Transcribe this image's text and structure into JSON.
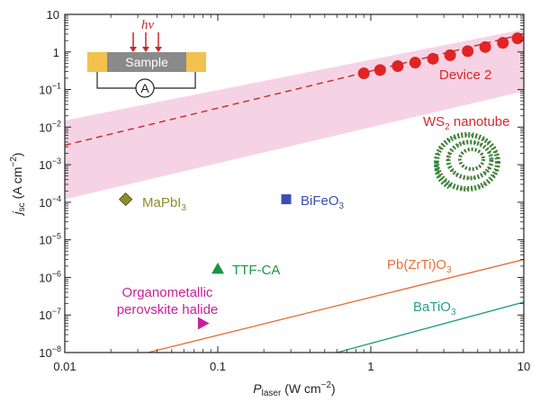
{
  "chart_data": {
    "type": "scatter",
    "x_scale": "log",
    "y_scale": "log",
    "xlim": [
      0.01,
      10
    ],
    "ylim": [
      1e-08,
      10
    ],
    "xlabel": "P_laser (W cm^-2)",
    "xlabel_parts": {
      "main": "P",
      "sub": "laser",
      "units": "(W cm",
      "sup": "−2",
      "close": ")"
    },
    "ylabel_parts": {
      "main": "j",
      "sub": "sc",
      "units": "(A cm",
      "sup": "−2",
      "close": ")"
    },
    "x_ticks": [
      {
        "value": 0.01,
        "label": "0.01"
      },
      {
        "value": 0.1,
        "label": "0.1"
      },
      {
        "value": 1,
        "label": "1"
      },
      {
        "value": 10,
        "label": "10"
      }
    ],
    "y_ticks": [
      {
        "value": 10,
        "label": "10",
        "exp": ""
      },
      {
        "value": 1,
        "label": "1",
        "exp": ""
      },
      {
        "value": 0.1,
        "label": "10",
        "exp": "−1"
      },
      {
        "value": 0.01,
        "label": "10",
        "exp": "−2"
      },
      {
        "value": 0.001,
        "label": "10",
        "exp": "−3"
      },
      {
        "value": 0.0001,
        "label": "10",
        "exp": "−4"
      },
      {
        "value": 1e-05,
        "label": "10",
        "exp": "−5"
      },
      {
        "value": 1e-06,
        "label": "10",
        "exp": "−6"
      },
      {
        "value": 1e-07,
        "label": "10",
        "exp": "−7"
      },
      {
        "value": 1e-08,
        "label": "10",
        "exp": "−8"
      }
    ],
    "series": [
      {
        "name": "Device 2",
        "color": "#e02424",
        "marker": "circle",
        "x": [
          0.9,
          1.15,
          1.5,
          1.95,
          2.55,
          3.3,
          4.3,
          5.6,
          7.3,
          9.1
        ],
        "y": [
          0.27,
          0.33,
          0.42,
          0.52,
          0.66,
          0.82,
          1.05,
          1.35,
          1.75,
          2.3
        ]
      },
      {
        "name": "MaPbI3",
        "label_main": "MaPbI",
        "label_sub": "3",
        "color": "#8c8c2e",
        "marker": "diamond",
        "x": [
          0.025
        ],
        "y": [
          0.00012
        ]
      },
      {
        "name": "BiFeO3",
        "label_main": "BiFeO",
        "label_sub": "3",
        "color": "#3b4fb0",
        "marker": "square",
        "x": [
          0.28
        ],
        "y": [
          0.00012
        ]
      },
      {
        "name": "TTF-CA",
        "label_main": "TTF-CA",
        "label_sub": "",
        "color": "#1a9641",
        "marker": "triangle-up",
        "x": [
          0.1
        ],
        "y": [
          1.7e-06
        ]
      },
      {
        "name": "Organometallic perovskite halide",
        "label_lines": [
          "Organometallic",
          "perovskite halide"
        ],
        "color": "#c7219a",
        "marker": "triangle-right",
        "x": [
          0.08
        ],
        "y": [
          6e-08
        ]
      }
    ],
    "fit_line": {
      "name": "Device 2 fit",
      "style": "dashed",
      "color": "#c62828",
      "x": [
        0.01,
        10
      ],
      "y": [
        0.0033,
        3.0
      ]
    },
    "band": {
      "name": "Device 2 range",
      "color": "#f6d3e4",
      "x": [
        0.01,
        10
      ],
      "y_low": [
        0.00012,
        0.09
      ],
      "y_high": [
        0.015,
        4.0
      ]
    },
    "lines": [
      {
        "name": "Pb(ZrTi)O3",
        "label_main": "Pb(ZrTi)O",
        "label_sub": "3",
        "color": "#e8703a",
        "x": [
          0.035,
          10
        ],
        "y": [
          1e-08,
          3e-06
        ]
      },
      {
        "name": "BaTiO3",
        "label_main": "BaTiO",
        "label_sub": "3",
        "color": "#2a9d8f",
        "x": [
          0.6,
          10
        ],
        "y": [
          1e-08,
          2.2e-07
        ]
      }
    ],
    "annotations": {
      "device2": "Device 2",
      "ws2_main": "WS",
      "ws2_sub": "2",
      "ws2_rest": " nanotube"
    },
    "inset": {
      "sample_label": "Sample",
      "light_label": "hν",
      "ammeter_label": "A"
    }
  }
}
